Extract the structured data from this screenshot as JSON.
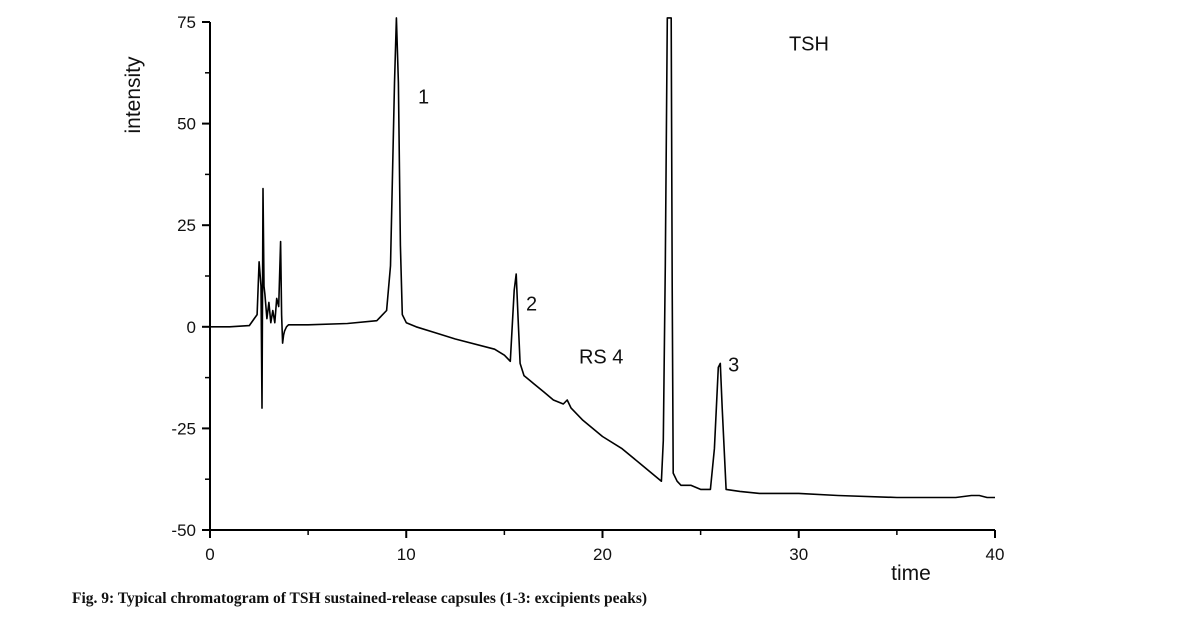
{
  "caption": "Fig. 9: Typical chromatogram of TSH sustained-release capsules (1-3: excipients peaks)",
  "chart_data": {
    "type": "line",
    "title": "",
    "xlabel": "time",
    "ylabel": "intensity",
    "xlim": [
      0,
      40
    ],
    "ylim": [
      -50,
      75
    ],
    "x_ticks": [
      0,
      10,
      20,
      30,
      40
    ],
    "y_ticks": [
      -50,
      -25,
      0,
      25,
      50,
      75
    ],
    "x_tick_labels": [
      "0",
      "10",
      "20",
      "30",
      "40"
    ],
    "y_tick_labels": [
      "-50",
      "-25",
      "0",
      "25",
      "50",
      "75"
    ],
    "grid": false,
    "legend": "none",
    "line_color": "#000000",
    "series": [
      {
        "x": [
          0,
          1.0,
          2.0,
          2.4,
          2.5,
          2.6,
          2.65,
          2.7,
          2.75,
          2.8,
          2.9,
          3.0,
          3.1,
          3.2,
          3.3,
          3.4,
          3.5,
          3.6,
          3.65,
          3.7,
          3.75,
          3.8,
          3.9,
          4.0,
          4.2,
          5.0,
          7.0,
          8.5,
          9.0,
          9.2,
          9.4,
          9.5,
          9.6,
          9.7,
          9.8,
          10.0,
          10.5,
          11.5,
          12.5,
          14.5,
          15.0,
          15.3,
          15.5,
          15.6,
          15.7,
          15.8,
          16.0,
          16.5,
          17.0,
          17.5,
          18.0,
          18.2,
          18.4,
          19.0,
          20.0,
          21.0,
          22.0,
          22.5,
          23.0,
          23.1,
          23.2,
          23.3,
          23.35,
          23.5,
          23.55,
          23.6,
          23.8,
          24.0,
          24.5,
          25.0,
          25.5,
          25.7,
          25.9,
          26.0,
          26.1,
          26.3,
          27.0,
          28.0,
          30.0,
          32.0,
          35.0,
          38.0,
          38.8,
          39.2,
          39.6,
          40.0
        ],
        "y": [
          0,
          0,
          0.3,
          3,
          16,
          10,
          -20,
          34,
          10,
          8,
          2,
          6,
          1,
          4,
          1,
          7,
          5,
          21,
          3,
          -4,
          -2,
          -1,
          0,
          0.5,
          0.5,
          0.5,
          0.8,
          1.5,
          4,
          15,
          60,
          76,
          60,
          20,
          3,
          1,
          0,
          -1.5,
          -3,
          -5.5,
          -7,
          -8.5,
          9,
          13,
          2,
          -9,
          -12,
          -14,
          -16,
          -18,
          -19,
          -18,
          -20,
          -23,
          -27,
          -30,
          -34,
          -36,
          -38,
          -28,
          15,
          76,
          76,
          76,
          10,
          -36,
          -38,
          -39,
          -39,
          -40,
          -40,
          -30,
          -10,
          -9,
          -20,
          -40,
          -40.5,
          -41,
          -41,
          -41.5,
          -42,
          -42,
          -41.5,
          -41.5,
          -42,
          -42
        ]
      }
    ],
    "annotations": [
      {
        "text": "1",
        "x": 10.6,
        "y": 55
      },
      {
        "text": "2",
        "x": 16.1,
        "y": 4
      },
      {
        "text": "RS 4",
        "x": 18.8,
        "y": -9
      },
      {
        "text": "3",
        "x": 26.4,
        "y": -11
      },
      {
        "text": "TSH",
        "x": 29.5,
        "y": 68
      }
    ]
  }
}
